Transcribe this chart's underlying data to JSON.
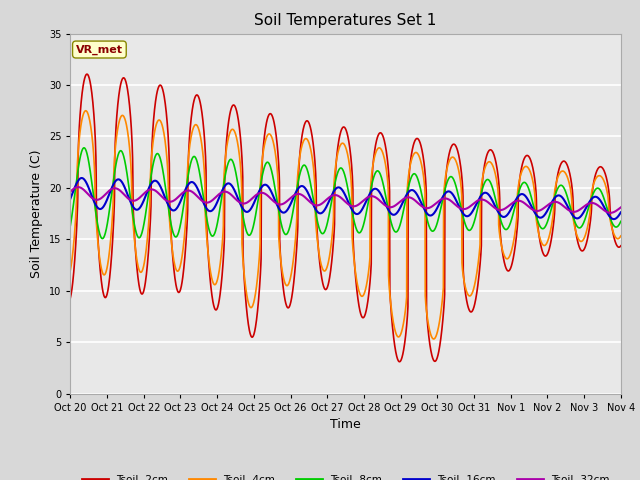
{
  "title": "Soil Temperatures Set 1",
  "xlabel": "Time",
  "ylabel": "Soil Temperature (C)",
  "ylim": [
    0,
    35
  ],
  "yticks": [
    0,
    5,
    10,
    15,
    20,
    25,
    30,
    35
  ],
  "background_color": "#d8d8d8",
  "plot_bg_color": "#e8e8e8",
  "annotation_text": "VR_met",
  "annotation_bg": "#ffffcc",
  "annotation_border": "#888800",
  "lines": {
    "Tsoil -2cm": {
      "color": "#cc0000",
      "lw": 1.2
    },
    "Tsoil -4cm": {
      "color": "#ff8800",
      "lw": 1.2
    },
    "Tsoil -8cm": {
      "color": "#00cc00",
      "lw": 1.2
    },
    "Tsoil -16cm": {
      "color": "#0000cc",
      "lw": 1.5
    },
    "Tsoil -32cm": {
      "color": "#aa00aa",
      "lw": 1.5
    }
  },
  "xtick_labels": [
    "Oct 20",
    "Oct 21",
    "Oct 22",
    "Oct 23",
    "Oct 24",
    "Oct 25",
    "Oct 26",
    "Oct 27",
    "Oct 28",
    "Oct 29",
    "Oct 30",
    "Oct 31",
    "Nov 1",
    "Nov 2",
    "Nov 3",
    "Nov 4"
  ],
  "n_days": 15,
  "samples_per_day": 144,
  "figsize": [
    6.4,
    4.8
  ],
  "dpi": 100
}
